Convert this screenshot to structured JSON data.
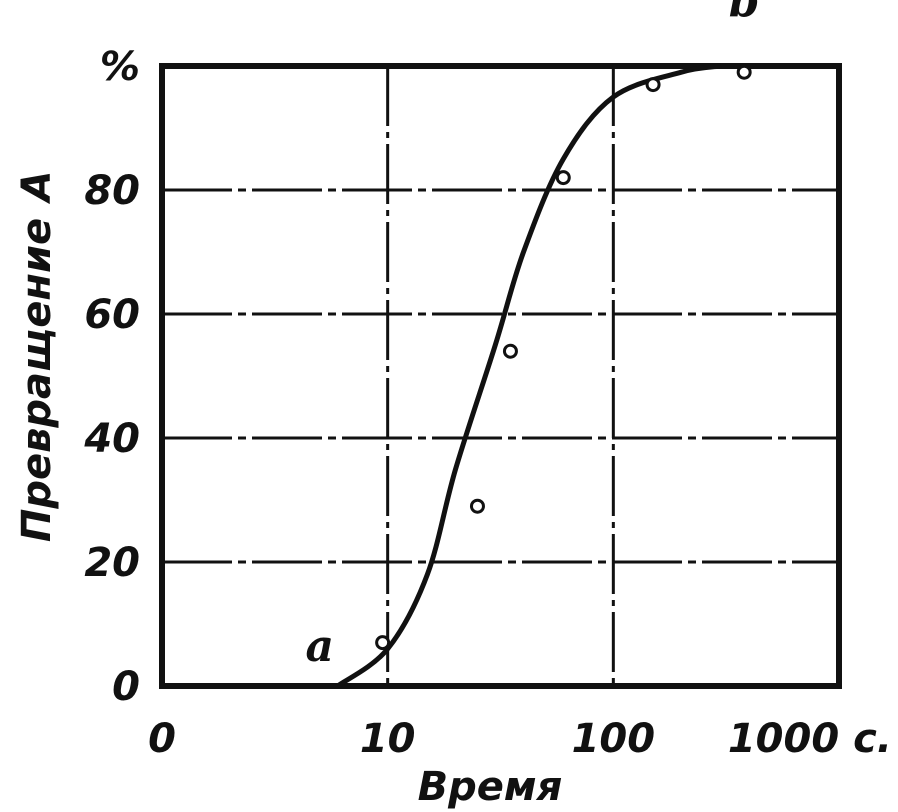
{
  "chart_data": {
    "type": "line",
    "xscale": "log",
    "x_tick_labels": [
      "0",
      "10",
      "100",
      "1000 с."
    ],
    "x_tick_values": [
      1,
      10,
      100,
      1000
    ],
    "y_tick_labels": [
      "0",
      "20",
      "40",
      "60",
      "80",
      "%"
    ],
    "y_tick_values": [
      0,
      20,
      40,
      60,
      80,
      100
    ],
    "xlabel": "Время",
    "ylabel": "Превращение",
    "ylim": [
      0,
      100
    ],
    "xlim": [
      1,
      1000
    ],
    "grid": true,
    "series": [
      {
        "values_x": [
          6,
          10,
          15,
          20,
          30,
          40,
          60,
          100,
          200,
          300
        ],
        "values_y": [
          0,
          6,
          18,
          35,
          55,
          70,
          85,
          95,
          99,
          100
        ],
        "markers_x": [
          9.5,
          25,
          35,
          60,
          150,
          380
        ],
        "markers_y": [
          7,
          29,
          54,
          82,
          97,
          99
        ]
      }
    ],
    "annotations": [
      {
        "text": "a",
        "x": 5,
        "y": 4
      },
      {
        "text": "b",
        "x": 380,
        "y": 108
      }
    ],
    "ylabel_annotation": "A",
    "colors": {
      "line": "#111111",
      "grid": "#111111",
      "frame": "#111111"
    }
  }
}
